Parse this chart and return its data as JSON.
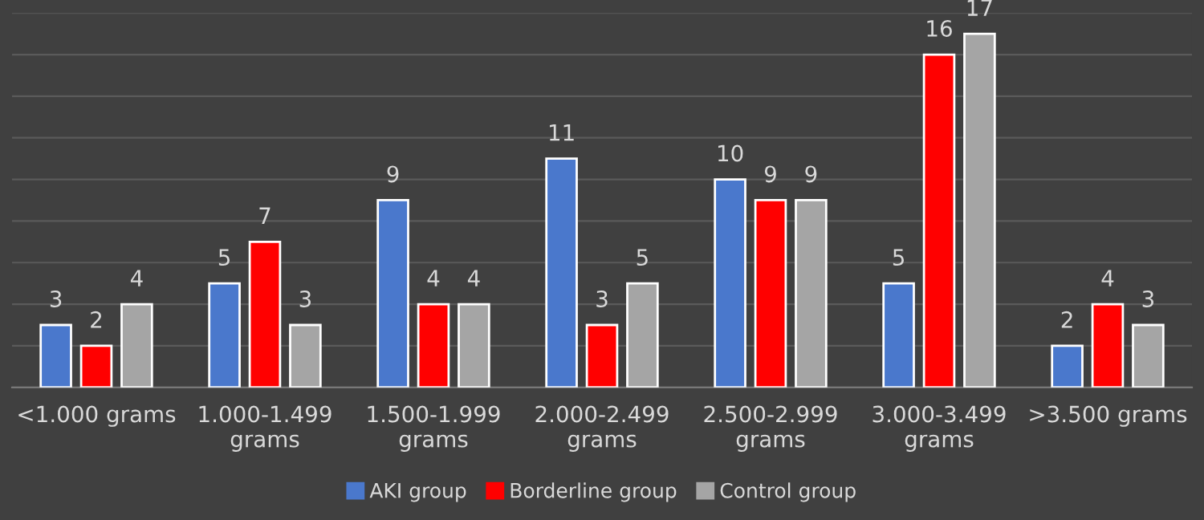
{
  "chart_data": {
    "type": "bar",
    "categories": [
      "<1.000 grams",
      "1.000-1.499 grams",
      "1.500-1.999 grams",
      "2.000-2.499 grams",
      "2.500-2.999 grams",
      "3.000-3.499 grams",
      ">3.500 grams"
    ],
    "series": [
      {
        "name": "AKI group",
        "color": "#4a78cc",
        "values": [
          3,
          5,
          9,
          11,
          10,
          5,
          2
        ]
      },
      {
        "name": "Borderline group",
        "color": "#ff0000",
        "values": [
          2,
          7,
          4,
          3,
          9,
          16,
          4
        ]
      },
      {
        "name": "Control group",
        "color": "#a5a5a5",
        "values": [
          4,
          3,
          4,
          5,
          9,
          17,
          3
        ]
      }
    ],
    "ylim": [
      0,
      18
    ],
    "yticks": [
      {
        "value": 0,
        "label": null
      },
      {
        "value": 2,
        "label": null
      },
      {
        "value": 4,
        "label": null
      },
      {
        "value": 6,
        "label": null
      },
      {
        "value": 8,
        "label": null
      },
      {
        "value": 10,
        "label": null
      },
      {
        "value": 12,
        "label": null
      },
      {
        "value": 14,
        "label": null
      },
      {
        "value": 16,
        "label": null
      },
      {
        "value": 18,
        "label": null
      }
    ],
    "tick_labels": "x",
    "grid": "y",
    "data_labels": true,
    "legend": "bottom"
  }
}
